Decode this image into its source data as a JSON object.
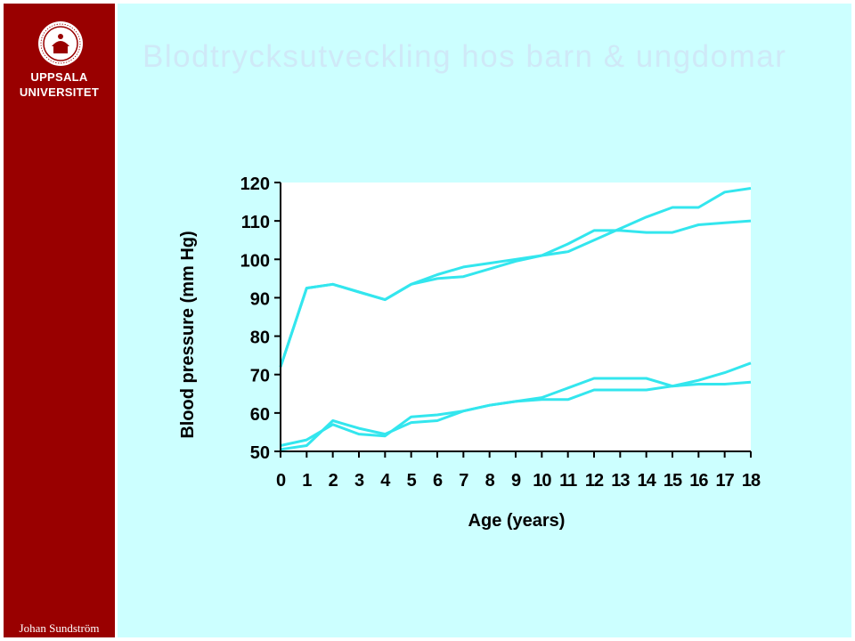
{
  "slide": {
    "title": "Blodtrycksutveckling hos barn & ungdomar",
    "author": "Johan Sundström"
  },
  "logo": {
    "line1": "UPPSALA",
    "line2": "UNIVERSITET",
    "icon": "university-seal-icon"
  },
  "colors": {
    "sidebar": "#990000",
    "slide_background": "#ccffff",
    "plot_background": "#ffffff",
    "series": "#33e6ee",
    "axis": "#000000",
    "title_text": "#cfe9f7"
  },
  "chart_data": {
    "type": "line",
    "xlabel": "Age (years)",
    "ylabel": "Blood pressure (mm Hg)",
    "xlim": [
      0,
      18
    ],
    "ylim": [
      50,
      120
    ],
    "x_ticks": [
      0,
      1,
      2,
      3,
      4,
      5,
      6,
      7,
      8,
      9,
      10,
      11,
      12,
      13,
      14,
      15,
      16,
      17,
      18
    ],
    "y_ticks": [
      50,
      60,
      70,
      80,
      90,
      100,
      110,
      120
    ],
    "grid": false,
    "legend": "none",
    "series": [
      {
        "x": [
          0,
          1,
          2,
          3,
          4,
          5,
          6,
          7,
          8,
          9,
          10,
          11,
          12,
          13,
          14,
          15,
          16,
          17,
          18
        ],
        "values": [
          72,
          92.5,
          93.5,
          91.5,
          89.5,
          93.5,
          95,
          95.5,
          97.5,
          99.5,
          101,
          102,
          105,
          108,
          111,
          113.5,
          113.5,
          117.5,
          118.5
        ]
      },
      {
        "x": [
          0,
          1,
          2,
          3,
          4,
          5,
          6,
          7,
          8,
          9,
          10,
          11,
          12,
          13,
          14,
          15,
          16,
          17,
          18
        ],
        "values": [
          72,
          92.5,
          93.5,
          91.5,
          89.5,
          93.5,
          96,
          98,
          99,
          100,
          101,
          104,
          107.5,
          107.5,
          107,
          107,
          109,
          109.5,
          110
        ]
      },
      {
        "x": [
          0,
          1,
          2,
          3,
          4,
          5,
          6,
          7,
          8,
          9,
          10,
          11,
          12,
          13,
          14,
          15,
          16,
          17,
          18
        ],
        "values": [
          50.5,
          51.5,
          58,
          56,
          54.5,
          57.5,
          58,
          60.5,
          62,
          63,
          64,
          66.5,
          69,
          69,
          69,
          67,
          68.5,
          70.5,
          73
        ]
      },
      {
        "x": [
          0,
          1,
          2,
          3,
          4,
          5,
          6,
          7,
          8,
          9,
          10,
          11,
          12,
          13,
          14,
          15,
          16,
          17,
          18
        ],
        "values": [
          51.5,
          53,
          57,
          54.5,
          54,
          59,
          59.5,
          60.5,
          62,
          63,
          63.5,
          63.5,
          66,
          66,
          66,
          67,
          67.5,
          67.5,
          68
        ]
      }
    ]
  }
}
